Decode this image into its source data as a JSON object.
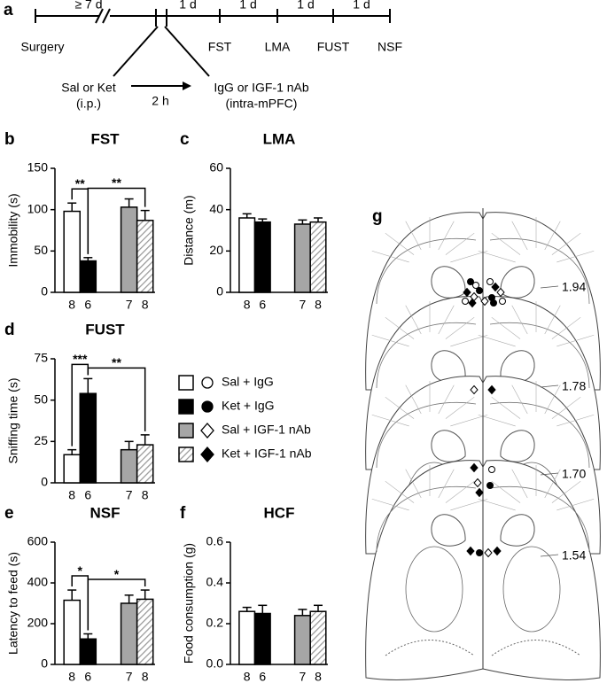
{
  "timeline": {
    "letter": "a",
    "intervals": [
      "≥ 7 d",
      "1 d",
      "1 d",
      "1 d",
      "1 d"
    ],
    "events": [
      "Surgery",
      "FST",
      "LMA",
      "FUST",
      "NSF"
    ],
    "treatment1": [
      "Sal or Ket",
      "(i.p.)"
    ],
    "delay": "2 h",
    "treatment2": [
      "IgG or IGF-1 nAb",
      "(intra-mPFC)"
    ]
  },
  "legend": {
    "items": [
      {
        "label": "Sal + IgG",
        "color": "#ffffff",
        "hatched": false,
        "marker": "circle",
        "marker_filled": false
      },
      {
        "label": "Ket + IgG",
        "color": "#000000",
        "hatched": false,
        "marker": "circle",
        "marker_filled": true
      },
      {
        "label": "Sal + IGF-1 nAb",
        "color": "#a6a6a6",
        "hatched": false,
        "marker": "diamond",
        "marker_filled": false
      },
      {
        "label": "Ket + IGF-1 nAb",
        "color": "#ffffff",
        "hatched": true,
        "marker": "diamond",
        "marker_filled": true
      }
    ]
  },
  "chart_data": [
    {
      "type": "bar",
      "panel": "b",
      "title": "FST",
      "y_label": "Immobility (s)",
      "categories": [
        "8",
        "6",
        "7",
        "8"
      ],
      "values": [
        98,
        38,
        103,
        87
      ],
      "errors": [
        10,
        4,
        10,
        12
      ],
      "ylim": [
        0,
        150
      ],
      "yticks": [
        0,
        50,
        100,
        150
      ],
      "annotations": [
        "**",
        "**"
      ]
    },
    {
      "type": "bar",
      "panel": "c",
      "title": "LMA",
      "y_label": "Distance (m)",
      "categories": [
        "8",
        "6",
        "7",
        "8"
      ],
      "values": [
        36,
        34,
        33,
        34
      ],
      "errors": [
        2,
        1.5,
        2,
        2
      ],
      "ylim": [
        0,
        60
      ],
      "yticks": [
        0,
        20,
        40,
        60
      ],
      "annotations": []
    },
    {
      "type": "bar",
      "panel": "d",
      "title": "FUST",
      "y_label": "Sniffing time (s)",
      "categories": [
        "8",
        "6",
        "7",
        "8"
      ],
      "values": [
        17,
        54,
        20,
        23
      ],
      "errors": [
        3,
        9,
        5,
        6
      ],
      "ylim": [
        0,
        75
      ],
      "yticks": [
        0,
        25,
        50,
        75
      ],
      "annotations": [
        "***",
        "**"
      ]
    },
    {
      "type": "bar",
      "panel": "e",
      "title": "NSF",
      "y_label": "Latency to feed (s)",
      "categories": [
        "8",
        "6",
        "7",
        "8"
      ],
      "values": [
        315,
        125,
        300,
        320
      ],
      "errors": [
        50,
        25,
        40,
        45
      ],
      "ylim": [
        0,
        600
      ],
      "yticks": [
        0,
        200,
        400,
        600
      ],
      "annotations": [
        "*",
        "*"
      ]
    },
    {
      "type": "bar",
      "panel": "f",
      "title": "HCF",
      "y_label": "Food consumption (g)",
      "categories": [
        "8",
        "6",
        "7",
        "8"
      ],
      "values": [
        0.26,
        0.25,
        0.24,
        0.26
      ],
      "errors": [
        0.02,
        0.04,
        0.03,
        0.03
      ],
      "ylim": [
        0,
        0.6
      ],
      "yticks": [
        {
          "value": 0,
          "label": "0.0"
        },
        0.2,
        0.4,
        0.6
      ],
      "annotations": []
    }
  ],
  "sections": {
    "letter": "g",
    "labels": [
      "1.94",
      "1.78",
      "1.70",
      "1.54"
    ]
  }
}
